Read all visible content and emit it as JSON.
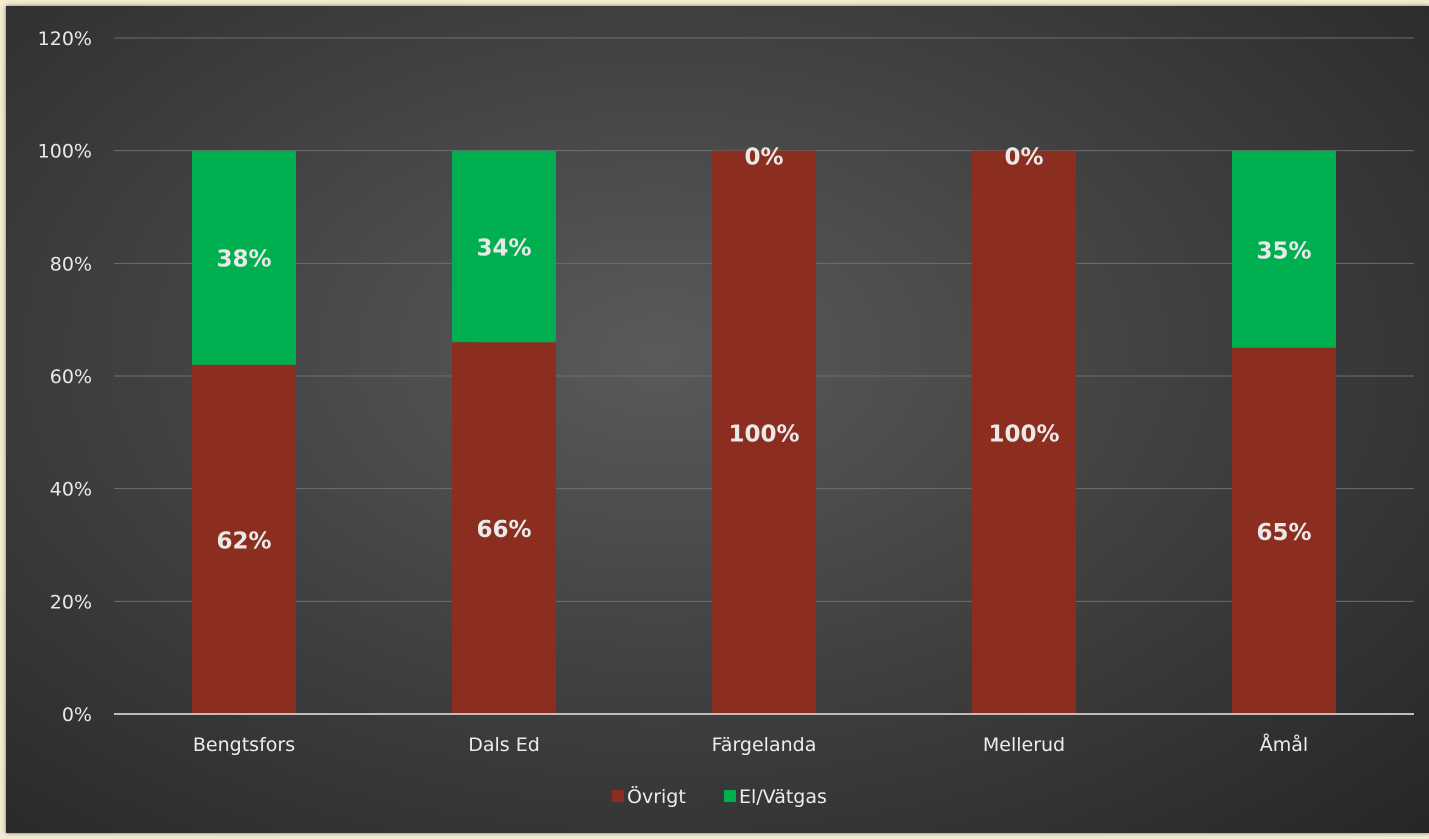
{
  "chart_data": {
    "type": "bar",
    "stacked": true,
    "categories": [
      "Bengtsfors",
      "Dals Ed",
      "Färgelanda",
      "Mellerud",
      "Åmål"
    ],
    "series": [
      {
        "name": "Övrigt",
        "color": "#8b2e1f",
        "values": [
          62,
          66,
          100,
          100,
          65
        ],
        "labels": [
          "62%",
          "66%",
          "100%",
          "100%",
          "65%"
        ]
      },
      {
        "name": "El/Vätgas",
        "color": "#00b050",
        "values": [
          38,
          34,
          0,
          0,
          35
        ],
        "labels": [
          "38%",
          "34%",
          "0%",
          "0%",
          "35%"
        ]
      }
    ],
    "y_ticks": [
      "0%",
      "20%",
      "40%",
      "60%",
      "80%",
      "100%",
      "120%"
    ],
    "ylim": [
      0,
      120
    ],
    "grid": true,
    "legend": "bottom",
    "background_color": "#474747",
    "text_color": "#e8e8e8"
  }
}
